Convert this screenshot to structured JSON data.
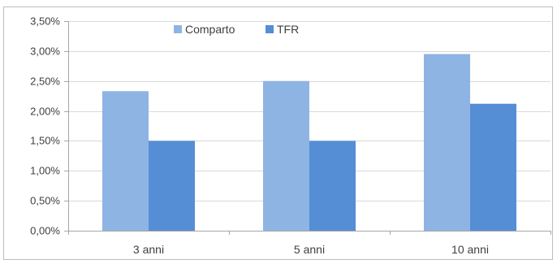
{
  "chart_data": {
    "type": "bar",
    "categories": [
      "3 anni",
      "5 anni",
      "10 anni"
    ],
    "series": [
      {
        "name": "Comparto",
        "values": [
          2.33,
          2.5,
          2.95
        ],
        "color": "#8EB4E3"
      },
      {
        "name": "TFR",
        "values": [
          1.5,
          1.5,
          2.12
        ],
        "color": "#558ED5"
      }
    ],
    "ylim": [
      0,
      3.5
    ],
    "yticks": [
      "0,00%",
      "0,50%",
      "1,00%",
      "1,50%",
      "2,00%",
      "2,50%",
      "3,00%",
      "3,50%"
    ],
    "ytick_values": [
      0,
      0.5,
      1.0,
      1.5,
      2.0,
      2.5,
      3.0,
      3.5
    ],
    "grid": true,
    "legend_position": "top-center",
    "title": "",
    "xlabel": "",
    "ylabel": ""
  },
  "colors": {
    "gridline": "#d9d9d9",
    "axis": "#a6a6a6",
    "text": "#404040"
  }
}
